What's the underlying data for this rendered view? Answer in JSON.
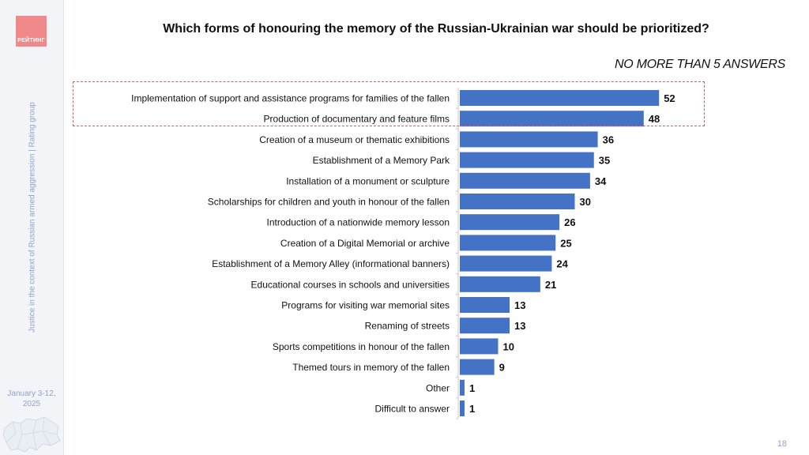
{
  "sidebar": {
    "logo_text": "РЕЙТИНГ",
    "vertical_text": "Justice in the context of Russian armed aggression | Rating group",
    "date_line1": "January 3-12,",
    "date_line2": "2025"
  },
  "title": "Which forms of honouring the memory of the Russian-Ukrainian war should be prioritized?",
  "subtitle": "NO MORE THAN 5 ANSWERS",
  "page_number": "18",
  "colors": {
    "bar": "#4472c4",
    "highlight_border": "#e05a5a",
    "sidebar_text": "#8fa3c9"
  },
  "chart_data": {
    "type": "bar",
    "orientation": "horizontal",
    "title": "Which forms of honouring the memory of the Russian-Ukrainian war should be prioritized?",
    "xlabel": "",
    "ylabel": "",
    "xlim": [
      0,
      60
    ],
    "grid": false,
    "legend": "none",
    "categories": [
      "Implementation of support and assistance programs for families of the fallen",
      "Production of documentary and feature films",
      "Creation of a museum or thematic exhibitions",
      "Establishment of a Memory Park",
      "Installation of a monument or sculpture",
      "Scholarships for children and youth in honour of the fallen",
      "Introduction of a nationwide memory lesson",
      "Creation of a Digital Memorial or archive",
      "Establishment of a Memory Alley (informational banners)",
      "Educational courses in schools and universities",
      "Programs for visiting war memorial sites",
      "Renaming of streets",
      "Sports competitions in honour of the fallen",
      "Themed tours in memory of the fallen",
      "Other",
      "Difficult to answer"
    ],
    "values": [
      52,
      48,
      36,
      35,
      34,
      30,
      26,
      25,
      24,
      21,
      13,
      13,
      10,
      9,
      1,
      1
    ]
  }
}
